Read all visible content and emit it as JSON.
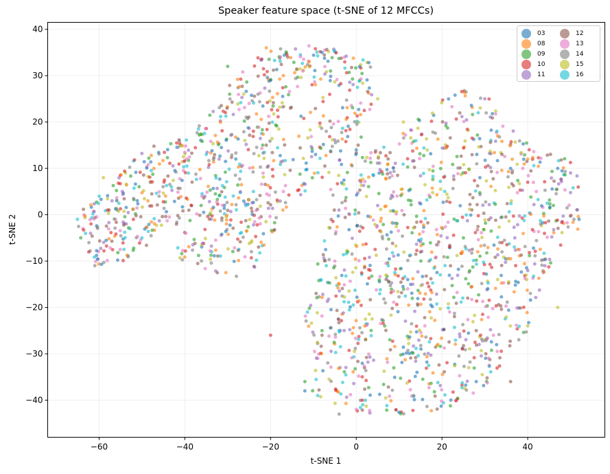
{
  "chart_data": {
    "type": "scatter",
    "title": "Speaker feature space (t-SNE of 12 MFCCs)",
    "xlabel": "t-SNE 1",
    "ylabel": "t-SNE 2",
    "xlim": [
      -72,
      58
    ],
    "ylim": [
      -48,
      41.5
    ],
    "xticks": [
      -60,
      -40,
      -20,
      0,
      20,
      40
    ],
    "yticks": [
      -40,
      -30,
      -20,
      -10,
      0,
      10,
      20,
      30,
      40
    ],
    "xtick_labels": [
      "−60",
      "−40",
      "−20",
      "0",
      "20",
      "40"
    ],
    "ytick_labels": [
      "−40",
      "−30",
      "−20",
      "−10",
      "0",
      "10",
      "20",
      "30",
      "40"
    ],
    "grid": true,
    "legend_position": "upper right",
    "legend_columns": 2,
    "marker_alpha": 0.6,
    "marker_size_px": 5,
    "series": [
      {
        "name": "03",
        "color": "#1f77b4"
      },
      {
        "name": "08",
        "color": "#ff7f0e"
      },
      {
        "name": "09",
        "color": "#2ca02c"
      },
      {
        "name": "10",
        "color": "#d62728"
      },
      {
        "name": "11",
        "color": "#9467bd"
      },
      {
        "name": "12",
        "color": "#8c564b"
      },
      {
        "name": "13",
        "color": "#e377c2"
      },
      {
        "name": "14",
        "color": "#7f7f7f"
      },
      {
        "name": "15",
        "color": "#bcbd22"
      },
      {
        "name": "16",
        "color": "#17becf"
      }
    ],
    "approx_total_points": 2000,
    "point_clouds": [
      {
        "name": "left-lobe",
        "outline": [
          [
            -66,
            -1
          ],
          [
            -62,
            3
          ],
          [
            -57,
            7
          ],
          [
            -52,
            12
          ],
          [
            -46,
            16
          ],
          [
            -42,
            17
          ],
          [
            -38,
            13
          ],
          [
            -40,
            6
          ],
          [
            -44,
            -2
          ],
          [
            -48,
            -6
          ],
          [
            -54,
            -10
          ],
          [
            -60,
            -11
          ],
          [
            -65,
            -6
          ]
        ],
        "weight": 0.12
      },
      {
        "name": "upper-middle",
        "outline": [
          [
            -44,
            15
          ],
          [
            -36,
            20
          ],
          [
            -30,
            28
          ],
          [
            -24,
            34
          ],
          [
            -16,
            37
          ],
          [
            -6,
            36
          ],
          [
            0,
            35
          ],
          [
            4,
            32
          ],
          [
            4,
            22
          ],
          [
            0,
            14
          ],
          [
            -4,
            10
          ],
          [
            -12,
            4
          ],
          [
            -18,
            -2
          ],
          [
            -20,
            -6
          ],
          [
            -24,
            -12
          ],
          [
            -30,
            -14
          ],
          [
            -36,
            -12
          ],
          [
            -42,
            -10
          ],
          [
            -42,
            0
          ],
          [
            -40,
            8
          ]
        ],
        "weight": 0.3
      },
      {
        "name": "right-mass",
        "outline": [
          [
            -10,
            -15
          ],
          [
            -8,
            -6
          ],
          [
            -6,
            6
          ],
          [
            0,
            14
          ],
          [
            8,
            17
          ],
          [
            16,
            22
          ],
          [
            24,
            28
          ],
          [
            30,
            27
          ],
          [
            34,
            20
          ],
          [
            40,
            16
          ],
          [
            46,
            14
          ],
          [
            52,
            11
          ],
          [
            52,
            -3
          ],
          [
            47,
            -8
          ],
          [
            42,
            -18
          ],
          [
            40,
            -26
          ],
          [
            34,
            -32
          ],
          [
            30,
            -37
          ],
          [
            22,
            -42
          ],
          [
            14,
            -43
          ],
          [
            4,
            -43
          ],
          [
            -2,
            -42
          ],
          [
            -8,
            -40
          ],
          [
            -11,
            -38
          ],
          [
            -10,
            -30
          ],
          [
            -12,
            -22
          ]
        ],
        "weight": 0.58
      }
    ],
    "sample_points": [
      {
        "series": "03",
        "points": [
          [
            -20,
            29
          ],
          [
            -8,
            35
          ],
          [
            0,
            14
          ],
          [
            36,
            10
          ],
          [
            47,
            10
          ],
          [
            12,
            -14
          ],
          [
            28,
            -36
          ],
          [
            -12,
            -38
          ],
          [
            52,
            -1
          ]
        ]
      },
      {
        "series": "08",
        "points": [
          [
            -21,
            36
          ],
          [
            -17,
            30
          ],
          [
            -11,
            33
          ],
          [
            33,
            17
          ],
          [
            40,
            12
          ],
          [
            -4,
            -15
          ],
          [
            19,
            -28
          ],
          [
            2,
            -24
          ]
        ]
      },
      {
        "series": "09",
        "points": [
          [
            -30,
            32
          ],
          [
            -6,
            31
          ],
          [
            -2,
            -8
          ],
          [
            -8,
            -25
          ],
          [
            25,
            -5
          ],
          [
            -12,
            -36
          ],
          [
            46,
            2
          ]
        ]
      },
      {
        "series": "10",
        "points": [
          [
            -58,
            1
          ],
          [
            -52,
            -1
          ],
          [
            -24,
            18
          ],
          [
            -20,
            -26
          ],
          [
            40,
            7
          ],
          [
            34,
            -6
          ],
          [
            29,
            -26
          ]
        ]
      },
      {
        "series": "11",
        "points": [
          [
            -62,
            -4
          ],
          [
            -57,
            3
          ],
          [
            -32,
            12
          ],
          [
            30,
            25
          ],
          [
            50,
            9
          ],
          [
            37,
            -5
          ],
          [
            44,
            -11
          ]
        ]
      },
      {
        "series": "12",
        "points": [
          [
            -21,
            15
          ],
          [
            -16,
            34
          ],
          [
            28,
            -25
          ],
          [
            26,
            -18
          ],
          [
            -8,
            -26
          ],
          [
            36,
            -36
          ],
          [
            34,
            13
          ]
        ]
      },
      {
        "series": "13",
        "points": [
          [
            -25,
            24
          ],
          [
            -17,
            5
          ],
          [
            -5,
            -10
          ],
          [
            12,
            -16
          ],
          [
            32,
            -26
          ],
          [
            42,
            5
          ],
          [
            0,
            -42
          ]
        ]
      },
      {
        "series": "14",
        "points": [
          [
            -61,
            -11
          ],
          [
            -46,
            4
          ],
          [
            -7,
            18
          ],
          [
            17,
            -10
          ],
          [
            34,
            -8
          ],
          [
            43,
            -2
          ],
          [
            -4,
            -43
          ]
        ]
      },
      {
        "series": "15",
        "points": [
          [
            -59,
            8
          ],
          [
            -26,
            16
          ],
          [
            5,
            25
          ],
          [
            11,
            20
          ],
          [
            33,
            -14
          ],
          [
            40,
            -24
          ],
          [
            47,
            -20
          ]
        ]
      },
      {
        "series": "16",
        "points": [
          [
            -60,
            4
          ],
          [
            -50,
            -5
          ],
          [
            -35,
            13
          ],
          [
            -24,
            5
          ],
          [
            -7,
            -11
          ],
          [
            -4,
            -25
          ],
          [
            -9,
            -39
          ]
        ]
      }
    ]
  }
}
